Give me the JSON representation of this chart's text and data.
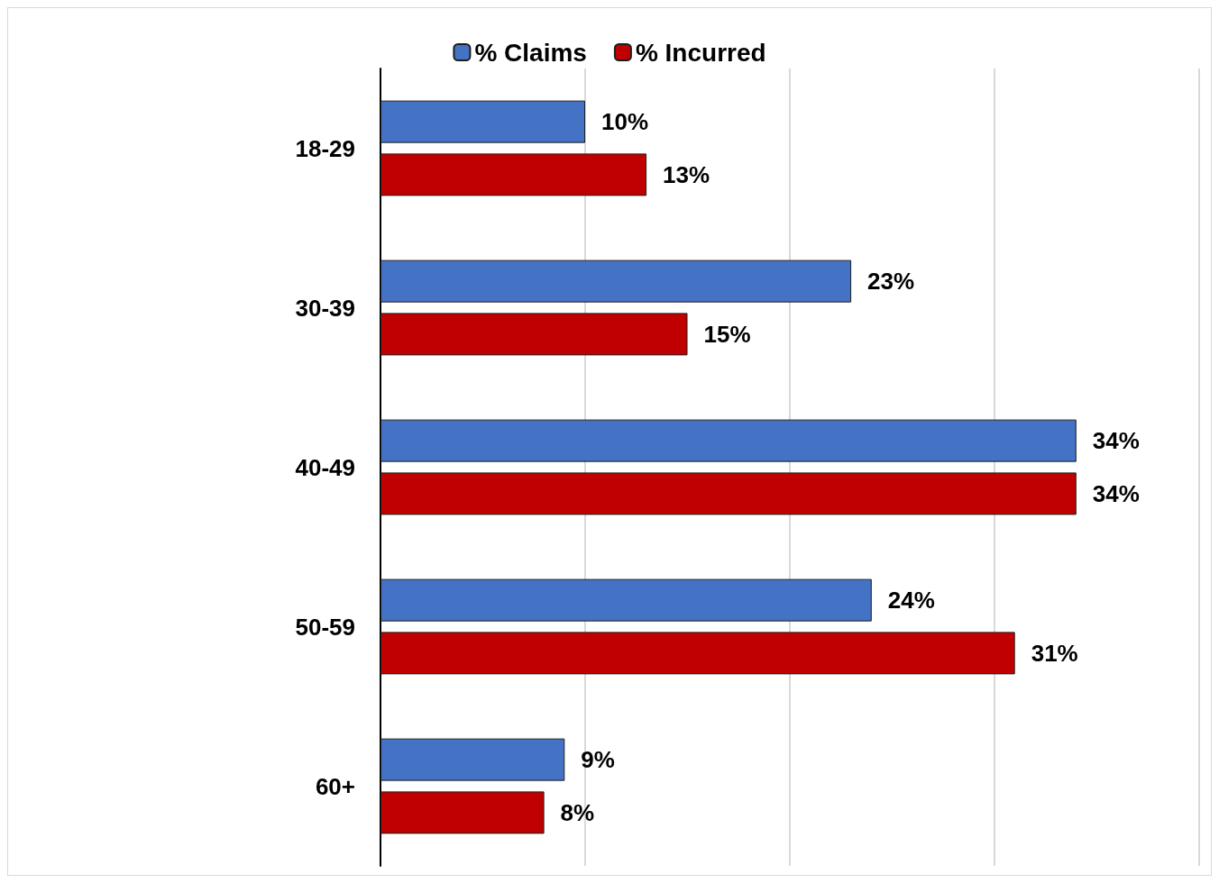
{
  "chart_data": {
    "type": "bar",
    "orientation": "horizontal",
    "categories": [
      "18-29",
      "30-39",
      "40-49",
      "50-59",
      "60+"
    ],
    "series": [
      {
        "name": "% Claims",
        "color": "#4472c4",
        "values": [
          10,
          23,
          34,
          24,
          9
        ],
        "value_labels": [
          "10%",
          "23%",
          "34%",
          "24%",
          "9%"
        ]
      },
      {
        "name": "% Incurred",
        "color": "#c00000",
        "values": [
          13,
          15,
          34,
          31,
          8
        ],
        "value_labels": [
          "13%",
          "15%",
          "34%",
          "31%",
          "8%"
        ]
      }
    ],
    "xlim": [
      0,
      40
    ],
    "xticks": [
      {
        "value": 0,
        "label": null
      },
      {
        "value": 10,
        "label": null
      },
      {
        "value": 20,
        "label": null
      },
      {
        "value": 30,
        "label": null
      },
      {
        "value": 40,
        "label": null
      }
    ],
    "tick_labels": "y",
    "grid": "x",
    "legend": "top"
  }
}
